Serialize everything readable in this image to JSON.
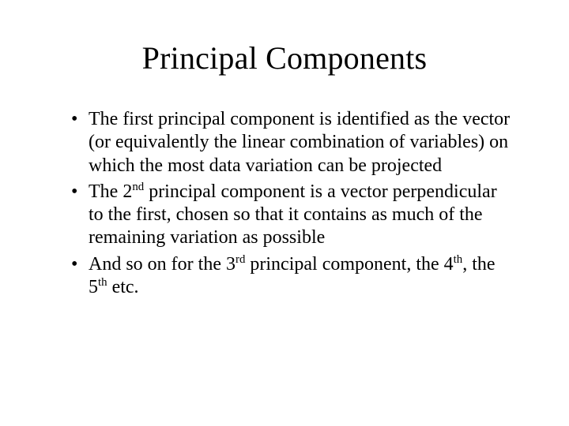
{
  "title": "Principal Components",
  "bullets": [
    {
      "pre": "The first principal component is identified as the vector (or equivalently the linear combination of variables) on which the most data variation can be projected"
    },
    {
      "pre": "The 2",
      "sup1": "nd",
      "mid1": " principal component is a vector perpendicular to the first, chosen so that it contains as much of the remaining variation as possible"
    },
    {
      "pre": "And so on for the 3",
      "sup1": "rd",
      "mid1": " principal component, the 4",
      "sup2": "th",
      "mid2": ", the 5",
      "sup3": "th",
      "mid3": " etc."
    }
  ]
}
